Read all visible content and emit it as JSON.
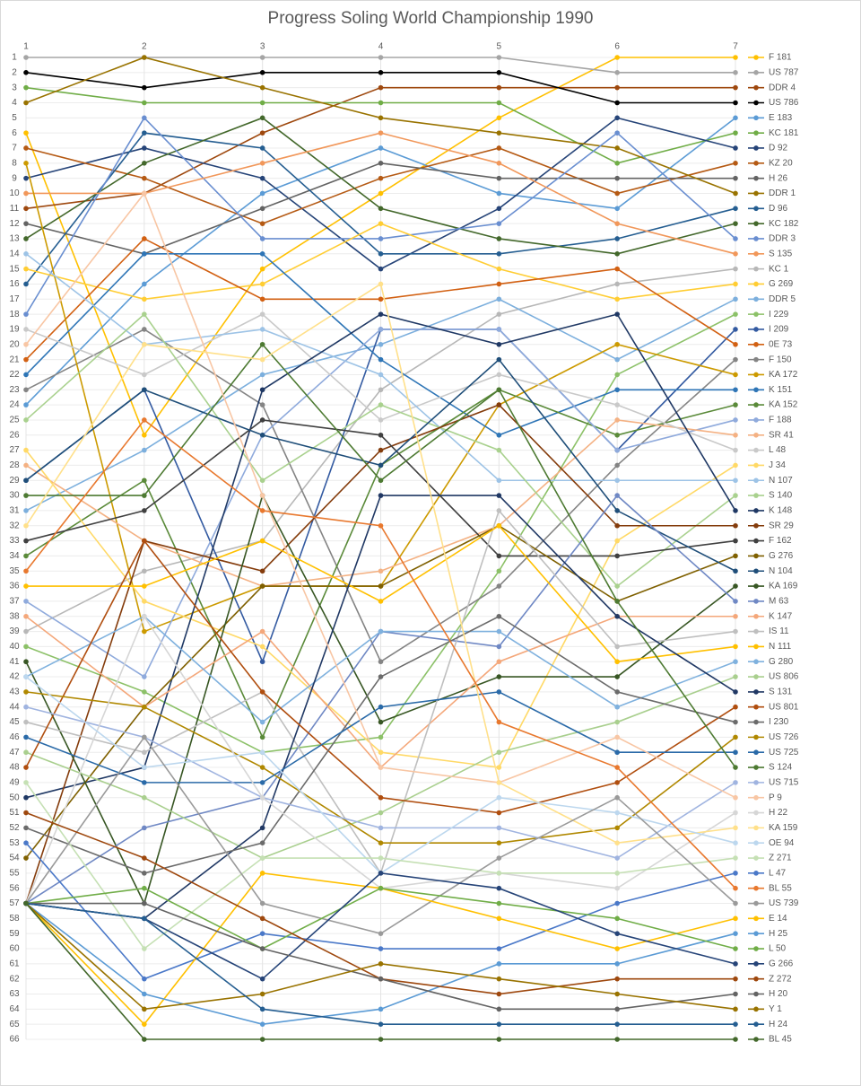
{
  "chart_data": {
    "type": "line",
    "title": "Progress Soling World Championship 1990",
    "x": [
      1,
      2,
      3,
      4,
      5,
      6,
      7
    ],
    "xlim": [
      1,
      7
    ],
    "xticks": [
      1,
      2,
      3,
      4,
      5,
      6,
      7
    ],
    "ylim": [
      1,
      66
    ],
    "y_inverted": true,
    "yticks": [
      1,
      2,
      3,
      4,
      5,
      6,
      7,
      8,
      9,
      10,
      11,
      12,
      13,
      14,
      15,
      16,
      17,
      18,
      19,
      20,
      21,
      22,
      23,
      24,
      25,
      26,
      27,
      28,
      29,
      30,
      31,
      32,
      33,
      34,
      35,
      36,
      37,
      38,
      39,
      40,
      41,
      42,
      43,
      44,
      45,
      46,
      47,
      48,
      49,
      50,
      51,
      52,
      53,
      54,
      55,
      56,
      57,
      58,
      59,
      60,
      61,
      62,
      63,
      64,
      65,
      66
    ],
    "grid": true,
    "legend": "right",
    "series": [
      {
        "name": "F 181",
        "color": "#ffc000",
        "values": [
          6,
          26,
          15,
          10,
          5,
          1,
          1
        ]
      },
      {
        "name": "US 787",
        "color": "#a5a5a5",
        "values": [
          1,
          1,
          1,
          1,
          1,
          2,
          2
        ]
      },
      {
        "name": "DDR 4",
        "color": "#9e480e",
        "values": [
          11,
          10,
          6,
          3,
          3,
          3,
          3
        ]
      },
      {
        "name": "US 786",
        "color": "#000000",
        "values": [
          2,
          3,
          2,
          2,
          2,
          4,
          4
        ]
      },
      {
        "name": "E 183",
        "color": "#5b9bd5",
        "values": [
          24,
          16,
          10,
          7,
          10,
          11,
          5
        ]
      },
      {
        "name": "KC 181",
        "color": "#70ad47",
        "values": [
          3,
          4,
          4,
          4,
          4,
          8,
          6
        ]
      },
      {
        "name": "D 92",
        "color": "#264478",
        "values": [
          9,
          7,
          9,
          15,
          11,
          5,
          7
        ]
      },
      {
        "name": "KZ 20",
        "color": "#b55a14",
        "values": [
          7,
          9,
          12,
          9,
          7,
          10,
          8
        ]
      },
      {
        "name": "H 26",
        "color": "#636363",
        "values": [
          12,
          14,
          11,
          8,
          9,
          9,
          9
        ]
      },
      {
        "name": "DDR 1",
        "color": "#997300",
        "values": [
          4,
          1,
          3,
          5,
          6,
          7,
          10
        ]
      },
      {
        "name": "D 96",
        "color": "#255e91",
        "values": [
          16,
          6,
          7,
          14,
          14,
          13,
          11
        ]
      },
      {
        "name": "KC 182",
        "color": "#43682b",
        "values": [
          13,
          8,
          5,
          11,
          13,
          14,
          12
        ]
      },
      {
        "name": "DDR 3",
        "color": "#698ed0",
        "values": [
          18,
          5,
          13,
          13,
          12,
          6,
          13
        ]
      },
      {
        "name": "S 135",
        "color": "#f1975a",
        "values": [
          10,
          10,
          8,
          6,
          8,
          12,
          14
        ]
      },
      {
        "name": "KC 1",
        "color": "#b7b7b7",
        "values": [
          39,
          35,
          33,
          23,
          18,
          16,
          15
        ]
      },
      {
        "name": "G 269",
        "color": "#ffcd33",
        "values": [
          15,
          17,
          16,
          12,
          15,
          17,
          16
        ]
      },
      {
        "name": "DDR 5",
        "color": "#7cafdd",
        "values": [
          31,
          27,
          22,
          20,
          17,
          21,
          17
        ]
      },
      {
        "name": "I 229",
        "color": "#8cc168",
        "values": [
          40,
          43,
          47,
          46,
          35,
          22,
          18
        ]
      },
      {
        "name": "I 209",
        "color": "#335aa1",
        "values": [
          29,
          23,
          41,
          19,
          19,
          27,
          19
        ]
      },
      {
        "name": "0E 73",
        "color": "#d26012",
        "values": [
          21,
          13,
          17,
          17,
          16,
          15,
          20
        ]
      },
      {
        "name": "F 150",
        "color": "#848484",
        "values": [
          23,
          19,
          24,
          41,
          36,
          28,
          21
        ]
      },
      {
        "name": "KA 172",
        "color": "#cc9a00",
        "values": [
          8,
          39,
          36,
          36,
          24,
          20,
          22
        ]
      },
      {
        "name": "K 151",
        "color": "#2e75b6",
        "values": [
          22,
          14,
          14,
          21,
          26,
          23,
          23
        ]
      },
      {
        "name": "KA 152",
        "color": "#5a8a39",
        "values": [
          34,
          29,
          46,
          28,
          23,
          26,
          24
        ]
      },
      {
        "name": "F 188",
        "color": "#8faadc",
        "values": [
          37,
          42,
          26,
          19,
          19,
          27,
          25
        ]
      },
      {
        "name": "SR 41",
        "color": "#f4b183",
        "values": [
          28,
          33,
          36,
          35,
          32,
          25,
          26
        ]
      },
      {
        "name": "L 48",
        "color": "#c9c9c9",
        "values": [
          19,
          22,
          18,
          25,
          22,
          24,
          27
        ]
      },
      {
        "name": "J 34",
        "color": "#ffd966",
        "values": [
          27,
          37,
          40,
          47,
          48,
          33,
          28
        ]
      },
      {
        "name": "N 107",
        "color": "#9dc3e6",
        "values": [
          14,
          20,
          19,
          22,
          29,
          29,
          29
        ]
      },
      {
        "name": "S 140",
        "color": "#a9d18e",
        "values": [
          25,
          18,
          29,
          24,
          27,
          36,
          30
        ]
      },
      {
        "name": "K 148",
        "color": "#1f3864",
        "values": [
          50,
          48,
          23,
          18,
          20,
          18,
          31
        ]
      },
      {
        "name": "SR  29",
        "color": "#843c0c",
        "values": [
          57,
          33,
          35,
          27,
          24,
          32,
          32
        ]
      },
      {
        "name": "F 162",
        "color": "#404040",
        "values": [
          33,
          31,
          25,
          26,
          34,
          34,
          33
        ]
      },
      {
        "name": "G 276",
        "color": "#7f6000",
        "values": [
          54,
          44,
          36,
          36,
          32,
          37,
          34
        ]
      },
      {
        "name": "N 104",
        "color": "#1f4e79",
        "values": [
          29,
          23,
          26,
          28,
          21,
          31,
          35
        ]
      },
      {
        "name": "KA 169",
        "color": "#375623",
        "values": [
          41,
          57,
          30,
          45,
          42,
          42,
          36
        ]
      },
      {
        "name": "M 63",
        "color": "#6f88c4",
        "values": [
          57,
          52,
          50,
          39,
          40,
          30,
          37
        ]
      },
      {
        "name": "K 147",
        "color": "#f4a77a",
        "values": [
          38,
          44,
          39,
          48,
          41,
          38,
          38
        ]
      },
      {
        "name": "IS 11",
        "color": "#bfbfbf",
        "values": [
          45,
          47,
          43,
          55,
          31,
          40,
          39
        ]
      },
      {
        "name": "N 111",
        "color": "#ffc000",
        "values": [
          36,
          36,
          33,
          37,
          32,
          41,
          40
        ]
      },
      {
        "name": "G 280",
        "color": "#7fb1de",
        "values": [
          42,
          38,
          45,
          39,
          39,
          44,
          41
        ]
      },
      {
        "name": "US 806",
        "color": "#a9cf8e",
        "values": [
          47,
          50,
          54,
          51,
          47,
          45,
          42
        ]
      },
      {
        "name": "S 131",
        "color": "#203864",
        "values": [
          57,
          58,
          52,
          30,
          30,
          38,
          43
        ]
      },
      {
        "name": "US 801",
        "color": "#b04e0f",
        "values": [
          48,
          33,
          43,
          50,
          51,
          49,
          44
        ]
      },
      {
        "name": "I 230",
        "color": "#6b6b6b",
        "values": [
          52,
          55,
          53,
          42,
          38,
          43,
          45
        ]
      },
      {
        "name": "US 726",
        "color": "#b08800",
        "values": [
          43,
          44,
          48,
          53,
          53,
          52,
          46
        ]
      },
      {
        "name": "US 725",
        "color": "#2a6aa8",
        "values": [
          46,
          49,
          49,
          44,
          43,
          47,
          47
        ]
      },
      {
        "name": "S 124",
        "color": "#4d7a32",
        "values": [
          30,
          30,
          20,
          29,
          23,
          37,
          48
        ]
      },
      {
        "name": "US 715",
        "color": "#a0b4e0",
        "values": [
          44,
          46,
          50,
          52,
          52,
          54,
          49
        ]
      },
      {
        "name": "P 9",
        "color": "#f8c6a4",
        "values": [
          20,
          10,
          30,
          48,
          49,
          46,
          50
        ]
      },
      {
        "name": "H 22",
        "color": "#d6d6d6",
        "values": [
          57,
          38,
          50,
          56,
          55,
          56,
          51
        ]
      },
      {
        "name": "KA 159",
        "color": "#ffe08a",
        "values": [
          32,
          20,
          21,
          16,
          49,
          53,
          52
        ]
      },
      {
        "name": "OE 94",
        "color": "#bcd7ee",
        "values": [
          42,
          48,
          47,
          55,
          50,
          51,
          53
        ]
      },
      {
        "name": "Z 271",
        "color": "#c5e0b4",
        "values": [
          49,
          60,
          54,
          54,
          55,
          55,
          54
        ]
      },
      {
        "name": "L 47",
        "color": "#4a78c8",
        "values": [
          53,
          62,
          59,
          60,
          60,
          57,
          55
        ]
      },
      {
        "name": "BL 55",
        "color": "#e8782e",
        "values": [
          35,
          25,
          31,
          32,
          45,
          48,
          56
        ]
      },
      {
        "name": "US 739",
        "color": "#9a9a9a",
        "values": [
          57,
          46,
          57,
          59,
          54,
          50,
          57
        ]
      },
      {
        "name": "E 14",
        "color": "#ffc000",
        "values": [
          57,
          65,
          55,
          56,
          58,
          60,
          58
        ]
      },
      {
        "name": "H 25",
        "color": "#5b9bd5",
        "values": [
          57,
          63,
          65,
          64,
          61,
          61,
          59
        ]
      },
      {
        "name": "L 50",
        "color": "#70ad47",
        "values": [
          57,
          56,
          60,
          56,
          57,
          58,
          60
        ]
      },
      {
        "name": "G 266",
        "color": "#264478",
        "values": [
          57,
          58,
          62,
          55,
          56,
          59,
          61
        ]
      },
      {
        "name": "Z 272",
        "color": "#9e480e",
        "values": [
          51,
          54,
          58,
          62,
          63,
          62,
          62
        ]
      },
      {
        "name": "H 20",
        "color": "#636363",
        "values": [
          57,
          57,
          60,
          62,
          64,
          64,
          63
        ]
      },
      {
        "name": "Y 1",
        "color": "#997300",
        "values": [
          57,
          64,
          63,
          61,
          62,
          63,
          64
        ]
      },
      {
        "name": "H 24",
        "color": "#255e91",
        "values": [
          57,
          58,
          64,
          65,
          65,
          65,
          65
        ]
      },
      {
        "name": "BL 45",
        "color": "#43682b",
        "values": [
          57,
          66,
          66,
          66,
          66,
          66,
          66
        ]
      }
    ]
  }
}
